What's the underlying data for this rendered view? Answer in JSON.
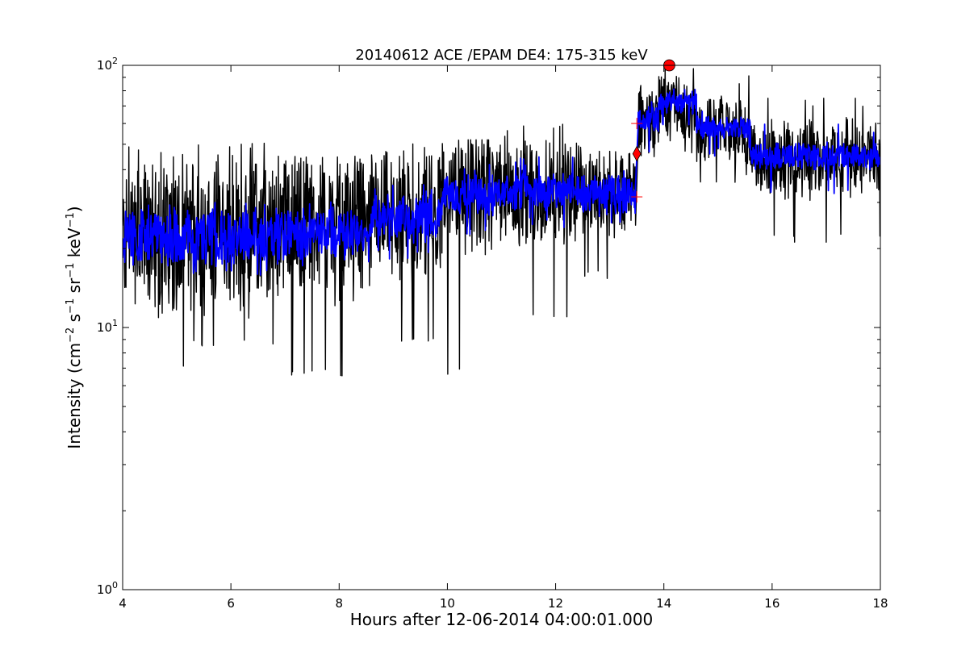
{
  "chart_data": {
    "type": "line",
    "title": "20140612 ACE /EPAM DE4: 175-315 keV",
    "xlabel": "Hours after 12-06-2014 04:00:01.000",
    "ylabel": {
      "prefix": "Intensity (cm",
      "sup1": "−2",
      "mid1": " s",
      "sup2": "−1",
      "mid2": " sr",
      "sup3": "−1",
      "mid3": " keV",
      "sup4": "−1",
      "suffix": ")"
    },
    "xlim": [
      4,
      18
    ],
    "ylim": [
      1,
      100
    ],
    "yscale": "log",
    "grid": false,
    "x_ticks": [
      4,
      6,
      8,
      10,
      12,
      14,
      16,
      18
    ],
    "y_ticks": [
      {
        "value": 1,
        "base": "10",
        "exp": "0"
      },
      {
        "value": 10,
        "base": "10",
        "exp": "1"
      },
      {
        "value": 100,
        "base": "10",
        "exp": "2"
      }
    ],
    "series": [
      {
        "role": "raw",
        "color": "#000000",
        "segments": [
          {
            "x0": 4.0,
            "x1": 4.6,
            "median": 22,
            "spread": 0.55,
            "min": 12,
            "max": 50
          },
          {
            "x0": 4.6,
            "x1": 5.2,
            "median": 22,
            "spread": 0.6,
            "min": 6.5,
            "max": 47
          },
          {
            "x0": 5.2,
            "x1": 6.8,
            "median": 22,
            "spread": 0.6,
            "min": 8.5,
            "max": 51
          },
          {
            "x0": 6.8,
            "x1": 8.6,
            "median": 24,
            "spread": 0.55,
            "min": 6.5,
            "max": 45
          },
          {
            "x0": 8.6,
            "x1": 9.9,
            "median": 26,
            "spread": 0.5,
            "min": 8.5,
            "max": 52
          },
          {
            "x0": 9.9,
            "x1": 11.0,
            "median": 32,
            "spread": 0.45,
            "min": 6.5,
            "max": 52
          },
          {
            "x0": 11.0,
            "x1": 12.5,
            "median": 33,
            "spread": 0.4,
            "min": 10.5,
            "max": 61
          },
          {
            "x0": 12.5,
            "x1": 13.48,
            "median": 32,
            "spread": 0.35,
            "min": 15,
            "max": 47
          },
          {
            "x0": 13.52,
            "x1": 13.9,
            "median": 62,
            "spread": 0.3,
            "min": 40,
            "max": 90
          },
          {
            "x0": 13.9,
            "x1": 14.6,
            "median": 70,
            "spread": 0.25,
            "min": 45,
            "max": 98
          },
          {
            "x0": 14.6,
            "x1": 15.6,
            "median": 56,
            "spread": 0.25,
            "min": 35,
            "max": 92
          },
          {
            "x0": 15.6,
            "x1": 18.0,
            "median": 44,
            "spread": 0.3,
            "min": 21,
            "max": 75
          }
        ]
      },
      {
        "role": "smoothed",
        "color": "#0000ff",
        "segments": [
          {
            "x0": 4.0,
            "x1": 6.8,
            "median": 22,
            "spread": 0.2,
            "min": 15,
            "max": 30
          },
          {
            "x0": 6.8,
            "x1": 8.6,
            "median": 23,
            "spread": 0.18,
            "min": 17,
            "max": 31
          },
          {
            "x0": 8.6,
            "x1": 9.9,
            "median": 26,
            "spread": 0.18,
            "min": 18,
            "max": 36
          },
          {
            "x0": 9.9,
            "x1": 11.0,
            "median": 32,
            "spread": 0.15,
            "min": 22,
            "max": 42
          },
          {
            "x0": 11.0,
            "x1": 12.5,
            "median": 33,
            "spread": 0.14,
            "min": 24,
            "max": 45
          },
          {
            "x0": 12.5,
            "x1": 13.48,
            "median": 32,
            "spread": 0.14,
            "min": 25,
            "max": 40
          },
          {
            "x0": 13.52,
            "x1": 13.9,
            "median": 62,
            "spread": 0.1,
            "min": 45,
            "max": 75
          },
          {
            "x0": 13.9,
            "x1": 14.6,
            "median": 72,
            "spread": 0.08,
            "min": 55,
            "max": 85
          },
          {
            "x0": 14.6,
            "x1": 15.6,
            "median": 58,
            "spread": 0.08,
            "min": 45,
            "max": 70
          },
          {
            "x0": 15.6,
            "x1": 18.0,
            "median": 45,
            "spread": 0.1,
            "min": 32,
            "max": 60
          }
        ]
      }
    ],
    "markers": [
      {
        "type": "circle",
        "x": 14.1,
        "y": 100,
        "color": "#ff0000"
      },
      {
        "type": "diamond",
        "x": 13.5,
        "y": 46,
        "color": "#ff0000"
      },
      {
        "type": "plus",
        "x": 13.5,
        "y": 60,
        "color": "#ff0000"
      },
      {
        "type": "plus",
        "x": 13.5,
        "y": 31.5,
        "color": "#ff0000"
      }
    ]
  }
}
